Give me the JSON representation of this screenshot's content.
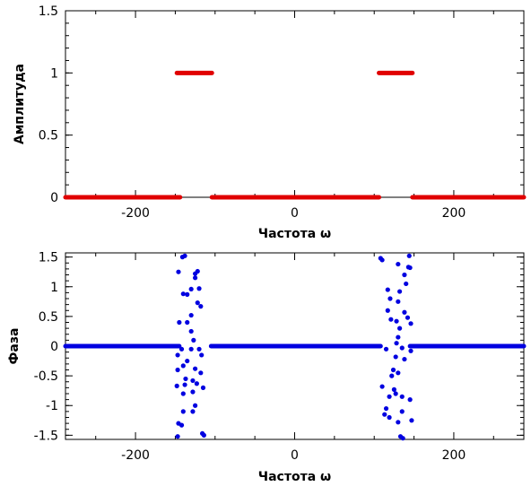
{
  "chart_data": [
    {
      "type": "scatter",
      "title": "",
      "xlabel": "Частота ω",
      "ylabel": "Амплитуда",
      "xlim": [
        -288,
        288
      ],
      "ylim": [
        0,
        1.5
      ],
      "xticks": [
        -200,
        0,
        200
      ],
      "xtick_labels": [
        "-200",
        "0",
        "200"
      ],
      "yticks": [
        0,
        0.5,
        1,
        1.5
      ],
      "ytick_labels": [
        "0",
        "0.5",
        "1",
        "1.5"
      ],
      "grid": false,
      "legend": "none",
      "series": [
        {
          "color": "#e00000",
          "marker": "dot",
          "segments": [
            {
              "x_start": -288,
              "x_end": -144,
              "y": 0
            },
            {
              "x_start": -148,
              "x_end": -104,
              "y": 1
            },
            {
              "x_start": -104,
              "x_end": 106,
              "y": 0
            },
            {
              "x_start": 106,
              "x_end": 148,
              "y": 1
            },
            {
              "x_start": 148,
              "x_end": 288,
              "y": 0
            }
          ]
        }
      ]
    },
    {
      "type": "scatter",
      "title": "",
      "xlabel": "Частота ω",
      "ylabel": "Фаза",
      "xlim": [
        -288,
        288
      ],
      "ylim": [
        -1.57,
        1.57
      ],
      "xticks": [
        -200,
        0,
        200
      ],
      "xtick_labels": [
        "-200",
        "0",
        "200"
      ],
      "yticks": [
        -1.5,
        -1,
        -0.5,
        0,
        0.5,
        1,
        1.5
      ],
      "ytick_labels": [
        "-1.5",
        "-1",
        "-0.5",
        "0",
        "0.5",
        "1",
        "1.5"
      ],
      "grid": false,
      "legend": "none",
      "series": [
        {
          "color": "#0000e0",
          "marker": "dot",
          "zero_segments": [
            {
              "x_start": -288,
              "x_end": -145,
              "y": 0
            },
            {
              "x_start": -105,
              "x_end": 108,
              "y": 0
            },
            {
              "x_start": 145,
              "x_end": 288,
              "y": 0
            }
          ],
          "points": [
            [
              -146,
              1.25
            ],
            [
              -141,
              1.5
            ],
            [
              -138,
              1.52
            ],
            [
              -125,
              1.22
            ],
            [
              -122,
              1.26
            ],
            [
              -125,
              1.15
            ],
            [
              -130,
              0.96
            ],
            [
              -120,
              0.97
            ],
            [
              -140,
              0.88
            ],
            [
              -135,
              0.87
            ],
            [
              -122,
              0.73
            ],
            [
              -118,
              0.67
            ],
            [
              -130,
              0.52
            ],
            [
              -145,
              0.4
            ],
            [
              -135,
              0.4
            ],
            [
              -130,
              0.25
            ],
            [
              -127,
              0.1
            ],
            [
              -142,
              -0.05
            ],
            [
              -130,
              -0.05
            ],
            [
              -120,
              -0.05
            ],
            [
              -147,
              -0.15
            ],
            [
              -117,
              -0.15
            ],
            [
              -135,
              -0.25
            ],
            [
              -140,
              -0.33
            ],
            [
              -125,
              -0.38
            ],
            [
              -147,
              -0.4
            ],
            [
              -118,
              -0.45
            ],
            [
              -137,
              -0.55
            ],
            [
              -128,
              -0.58
            ],
            [
              -138,
              -0.65
            ],
            [
              -148,
              -0.67
            ],
            [
              -123,
              -0.63
            ],
            [
              -115,
              -0.7
            ],
            [
              -128,
              -0.77
            ],
            [
              -140,
              -0.8
            ],
            [
              -125,
              -1.0
            ],
            [
              -140,
              -1.1
            ],
            [
              -128,
              -1.1
            ],
            [
              -146,
              -1.3
            ],
            [
              -142,
              -1.33
            ],
            [
              -116,
              -1.47
            ],
            [
              -114,
              -1.5
            ],
            [
              -147,
              -1.52
            ],
            [
              108,
              1.48
            ],
            [
              110,
              1.45
            ],
            [
              144,
              1.52
            ],
            [
              130,
              1.38
            ],
            [
              143,
              1.33
            ],
            [
              145,
              1.32
            ],
            [
              138,
              1.2
            ],
            [
              140,
              1.05
            ],
            [
              117,
              0.95
            ],
            [
              132,
              0.92
            ],
            [
              120,
              0.8
            ],
            [
              130,
              0.75
            ],
            [
              117,
              0.6
            ],
            [
              138,
              0.57
            ],
            [
              142,
              0.48
            ],
            [
              121,
              0.45
            ],
            [
              128,
              0.42
            ],
            [
              146,
              0.38
            ],
            [
              132,
              0.3
            ],
            [
              130,
              0.15
            ],
            [
              128,
              0.05
            ],
            [
              115,
              -0.05
            ],
            [
              135,
              -0.03
            ],
            [
              146,
              -0.08
            ],
            [
              127,
              -0.18
            ],
            [
              138,
              -0.22
            ],
            [
              124,
              -0.4
            ],
            [
              130,
              -0.45
            ],
            [
              122,
              -0.5
            ],
            [
              110,
              -0.68
            ],
            [
              125,
              -0.73
            ],
            [
              127,
              -0.8
            ],
            [
              119,
              -0.85
            ],
            [
              135,
              -0.85
            ],
            [
              145,
              -0.9
            ],
            [
              115,
              -1.05
            ],
            [
              135,
              -1.1
            ],
            [
              119,
              -1.2
            ],
            [
              147,
              -1.25
            ],
            [
              130,
              -1.28
            ],
            [
              113,
              -1.15
            ],
            [
              133,
              -1.52
            ],
            [
              136,
              -1.55
            ]
          ]
        }
      ]
    }
  ]
}
